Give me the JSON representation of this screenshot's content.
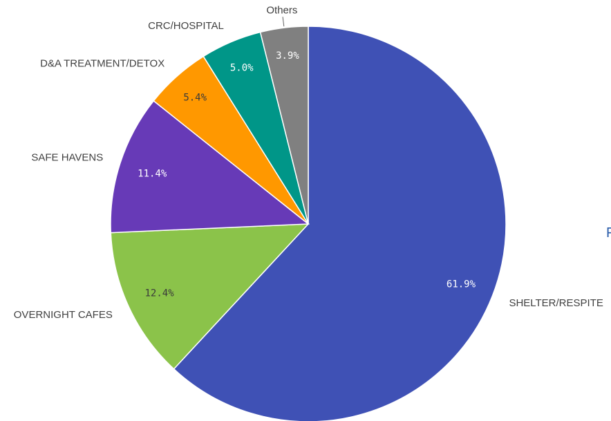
{
  "chart_data": {
    "type": "pie",
    "start_angle_deg": 0,
    "direction": "clockwise",
    "slices": [
      {
        "name": "SHELTER/RESPITE",
        "value": 61.9,
        "value_label": "61.9%",
        "color": "#3f51b5",
        "label_color": "#ffffff"
      },
      {
        "name": "OVERNIGHT CAFES",
        "value": 12.4,
        "value_label": "12.4%",
        "color": "#8bc34a",
        "label_color": "#3a3a3a"
      },
      {
        "name": "SAFE HAVENS",
        "value": 11.4,
        "value_label": "11.4%",
        "color": "#673ab7",
        "label_color": "#ffffff"
      },
      {
        "name": "D&A TREATMENT/DETOX",
        "value": 5.4,
        "value_label": "5.4%",
        "color": "#ff9800",
        "label_color": "#3a3a3a"
      },
      {
        "name": "CRC/HOSPITAL",
        "value": 5.0,
        "value_label": "5.0%",
        "color": "#009688",
        "label_color": "#ffffff"
      },
      {
        "name": "Others",
        "value": 3.9,
        "value_label": "3.9%",
        "color": "#808080",
        "label_color": "#ffffff"
      }
    ]
  },
  "edge_text": "F"
}
